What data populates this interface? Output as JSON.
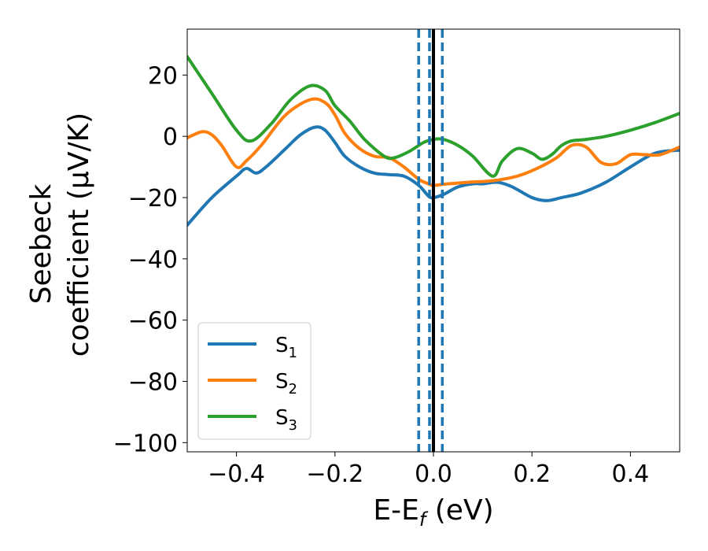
{
  "chart_data": {
    "type": "line",
    "xlabel": {
      "main": "E-E",
      "sub": "f",
      "tail": " (eV)"
    },
    "ylabel": {
      "line1": "Seebeck",
      "line2": "coefficient  (μV/K)"
    },
    "xlim": [
      -0.5,
      0.5
    ],
    "ylim": [
      -103,
      35
    ],
    "xticks": [
      -0.4,
      -0.2,
      0.0,
      0.2,
      0.4
    ],
    "xtick_labels": [
      "−0.4",
      "−0.2",
      "0.0",
      "0.2",
      "0.4"
    ],
    "yticks": [
      20,
      0,
      -20,
      -40,
      -60,
      -80,
      -100
    ],
    "ytick_labels": [
      "20",
      "0",
      "−20",
      "−40",
      "−60",
      "−80",
      "−100"
    ],
    "grid": false,
    "legend_position": "lower-left",
    "vlines": [
      {
        "x": -0.03,
        "style": "dashed",
        "color": "#1f77b4"
      },
      {
        "x": -0.008,
        "style": "dashed",
        "color": "#1f77b4"
      },
      {
        "x": 0.018,
        "style": "dashed",
        "color": "#1f77b4"
      },
      {
        "x": 0.0,
        "style": "solid",
        "color": "#000000"
      }
    ],
    "series": [
      {
        "name": "S",
        "sub": "1",
        "color": "#1f77b4",
        "x": [
          -0.5,
          -0.45,
          -0.4,
          -0.38,
          -0.36,
          -0.34,
          -0.3,
          -0.27,
          -0.24,
          -0.22,
          -0.2,
          -0.18,
          -0.15,
          -0.12,
          -0.09,
          -0.06,
          -0.03,
          -0.01,
          0.0,
          0.02,
          0.05,
          0.08,
          0.1,
          0.13,
          0.16,
          0.2,
          0.23,
          0.26,
          0.3,
          0.35,
          0.4,
          0.45,
          0.5
        ],
        "y": [
          -29,
          -20,
          -13,
          -10.5,
          -12,
          -10,
          -4,
          0.5,
          3,
          2,
          -2,
          -6.5,
          -10,
          -12,
          -12.5,
          -13,
          -16,
          -19.5,
          -20,
          -19,
          -16.5,
          -15.5,
          -15.5,
          -15,
          -16.5,
          -20,
          -21,
          -20,
          -18.5,
          -15,
          -10,
          -5.5,
          -4.5
        ]
      },
      {
        "name": "S",
        "sub": "2",
        "color": "#ff7f0e",
        "x": [
          -0.5,
          -0.47,
          -0.45,
          -0.43,
          -0.4,
          -0.38,
          -0.35,
          -0.3,
          -0.25,
          -0.22,
          -0.2,
          -0.18,
          -0.15,
          -0.12,
          -0.09,
          -0.06,
          -0.03,
          -0.01,
          0.0,
          0.03,
          0.07,
          0.12,
          0.17,
          0.21,
          0.25,
          0.28,
          0.31,
          0.34,
          0.37,
          0.4,
          0.43,
          0.46,
          0.5
        ],
        "y": [
          -0.5,
          1.5,
          0.5,
          -3,
          -10,
          -8,
          -3,
          7,
          12,
          11,
          7,
          1,
          -4,
          -6.5,
          -7,
          -10,
          -14,
          -15.5,
          -16,
          -15.5,
          -15,
          -14.5,
          -13,
          -10.5,
          -7,
          -3,
          -3.5,
          -8.5,
          -9,
          -6,
          -6,
          -6,
          -3.5
        ]
      },
      {
        "name": "S",
        "sub": "3",
        "color": "#2ca02c",
        "x": [
          -0.5,
          -0.45,
          -0.4,
          -0.37,
          -0.33,
          -0.29,
          -0.25,
          -0.22,
          -0.2,
          -0.17,
          -0.14,
          -0.1,
          -0.08,
          -0.05,
          -0.02,
          0.0,
          0.02,
          0.05,
          0.08,
          0.12,
          0.14,
          0.17,
          0.2,
          0.22,
          0.24,
          0.26,
          0.28,
          0.31,
          0.35,
          0.4,
          0.45,
          0.5
        ],
        "y": [
          26,
          14,
          2,
          -1.5,
          4,
          12,
          16.5,
          15,
          10,
          5,
          -1,
          -6.5,
          -7,
          -5,
          -2,
          -1,
          -1,
          -3,
          -6.5,
          -13,
          -8,
          -4,
          -5.5,
          -7.5,
          -6,
          -3,
          -1.5,
          -1,
          0,
          2,
          4.5,
          7.5
        ]
      }
    ]
  }
}
